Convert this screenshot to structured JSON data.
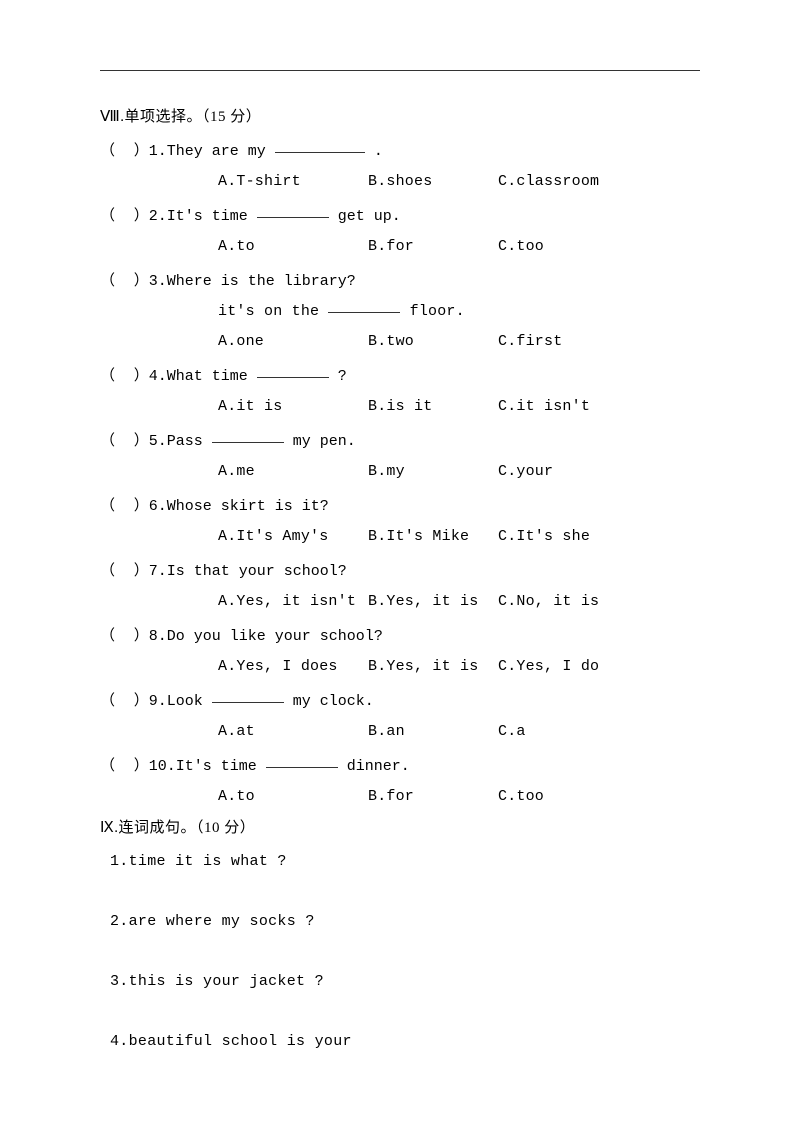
{
  "section8": {
    "roman": "Ⅷ",
    "title": ".单项选择。（15 分）",
    "questions": [
      {
        "num": "1",
        "stem_before": "They are my ",
        "blank_width": 90,
        "stem_after": " .",
        "options": {
          "a": "A.T-shirt",
          "b": "B.shoes",
          "c": "C.classroom"
        }
      },
      {
        "num": "2",
        "stem_before": "It's time ",
        "blank_width": 72,
        "stem_after": " get up.",
        "options": {
          "a": "A.to",
          "b": "B.for",
          "c": "C.too"
        }
      },
      {
        "num": "3",
        "stem_before": "Where is the library?",
        "blank_width": 0,
        "stem_after": "",
        "line2_before": "it's on the ",
        "line2_blank": 72,
        "line2_after": " floor.",
        "options": {
          "a": "A.one",
          "b": "B.two",
          "c": "C.first"
        }
      },
      {
        "num": "4",
        "stem_before": "What time ",
        "blank_width": 72,
        "stem_after": " ?",
        "options": {
          "a": "A.it is",
          "b": "B.is it",
          "c": "C.it isn't"
        }
      },
      {
        "num": "5",
        "stem_before": "Pass ",
        "blank_width": 72,
        "stem_after": " my pen.",
        "options": {
          "a": "A.me",
          "b": "B.my",
          "c": "C.your"
        }
      },
      {
        "num": "6",
        "stem_before": "Whose skirt is it?",
        "blank_width": 0,
        "stem_after": "",
        "options": {
          "a": "A.It's Amy's",
          "b": "B.It's Mike",
          "c": "C.It's she"
        }
      },
      {
        "num": "7",
        "stem_before": "Is that your school?",
        "blank_width": 0,
        "stem_after": "",
        "options": {
          "a": "A.Yes, it isn't",
          "b": "B.Yes, it is",
          "c": "C.No, it is"
        }
      },
      {
        "num": "8",
        "stem_before": "Do you like your school?",
        "blank_width": 0,
        "stem_after": "",
        "options": {
          "a": "A.Yes, I does",
          "b": "B.Yes, it is",
          "c": "C.Yes, I do"
        }
      },
      {
        "num": "9",
        "stem_before": "Look ",
        "blank_width": 72,
        "stem_after": " my clock.",
        "options": {
          "a": "A.at",
          "b": "B.an",
          "c": "C.a"
        }
      },
      {
        "num": "10",
        "stem_before": "It's time ",
        "blank_width": 72,
        "stem_after": " dinner.",
        "options": {
          "a": "A.to",
          "b": "B.for",
          "c": "C.too"
        }
      }
    ]
  },
  "section9": {
    "roman": "Ⅸ",
    "title": ".连词成句。（10 分）",
    "items": [
      "1.time   it   is   what  ?",
      "2.are   where   my   socks   ?",
      "3.this   is   your   jacket  ?",
      "4.beautiful   school   is   your"
    ]
  },
  "layout": {
    "paren": "（     ）",
    "indent_q": "      ",
    "indent_opt": "         ",
    "col_a": 0,
    "col_b": 150,
    "col_c": 280
  }
}
